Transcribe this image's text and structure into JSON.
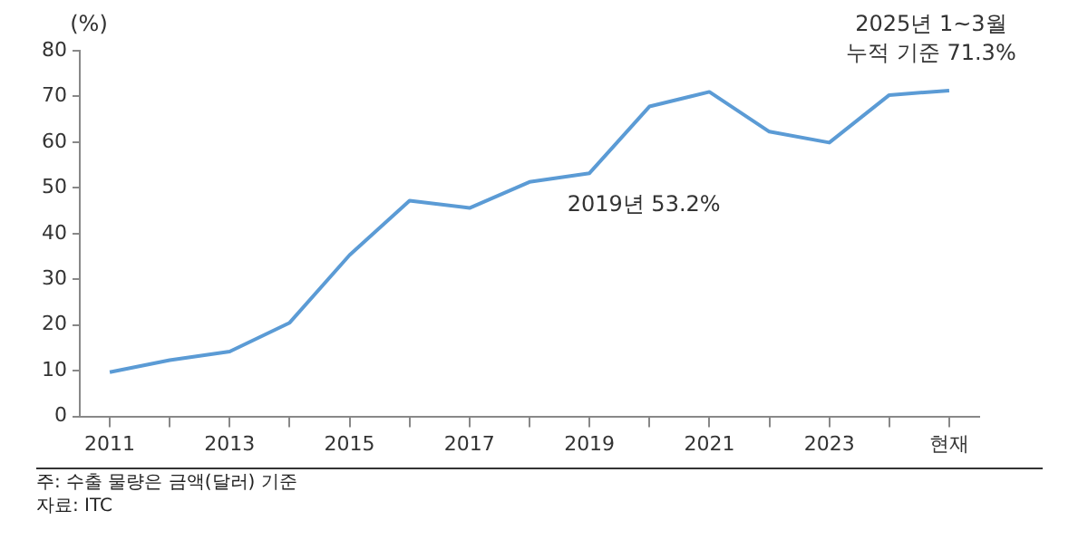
{
  "chart_data": {
    "type": "line",
    "ylabel": "(%)",
    "categories": [
      "2011",
      null,
      "2013",
      null,
      "2015",
      null,
      "2017",
      null,
      "2019",
      null,
      "2021",
      null,
      "2023",
      null,
      "현재"
    ],
    "series": [
      {
        "color": "#5b9bd5",
        "values": [
          9.7,
          12.3,
          14.2,
          20.5,
          35.3,
          47.2,
          45.6,
          51.3,
          53.2,
          67.8,
          71.0,
          62.3,
          59.9,
          70.3,
          71.3
        ]
      }
    ],
    "ylim": [
      0,
      80
    ],
    "yticks": [
      0,
      10,
      20,
      30,
      40,
      50,
      60,
      70,
      80
    ],
    "grid": false,
    "legend": false,
    "marker": "none",
    "line_style": "solid",
    "annotations": [
      {
        "text": "2019년 53.2%",
        "x": "2019",
        "y": 53.2
      },
      {
        "text": "2025년 1~3월\n누적 기준 71.3%",
        "x": "현재",
        "y": 71.3
      },
      "주: 수출 물량은 금액(달러) 기준",
      "자료: ITC"
    ]
  }
}
